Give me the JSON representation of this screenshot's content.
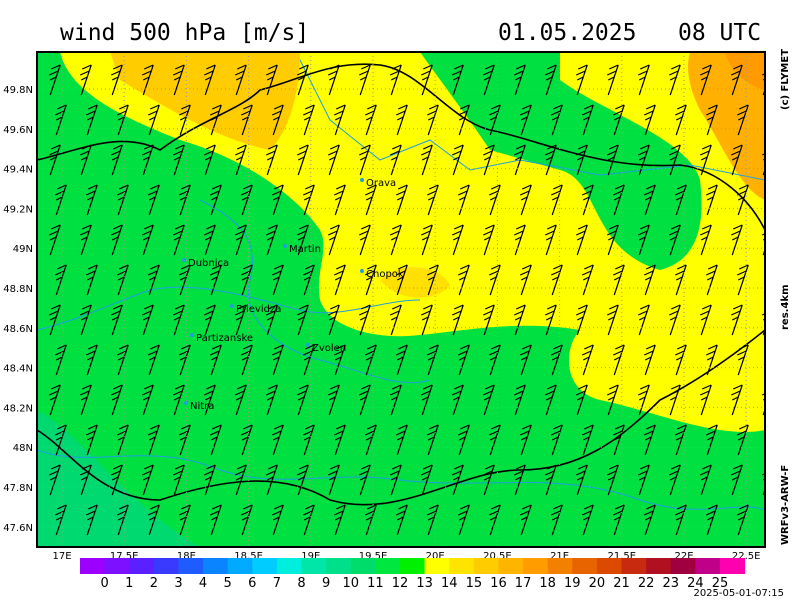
{
  "header": {
    "title": "wind 500 hPa [m/s]",
    "valid_time": "01.05.2025   08 UTC"
  },
  "side_labels": {
    "copyright": "(c) FLYMET",
    "resolution": "res.4km",
    "model": "WRFv3-ARW-F"
  },
  "lon_ticks": [
    "17E",
    "17.5E",
    "18E",
    "18.5E",
    "19E",
    "19.5E",
    "20E",
    "20.5E",
    "21E",
    "21.5E",
    "22E",
    "22.5E"
  ],
  "lat_ticks": [
    "49.8N",
    "49.6N",
    "49.4N",
    "49.2N",
    "49N",
    "48.8N",
    "48.6N",
    "48.4N",
    "48.2N",
    "48N",
    "47.8N",
    "47.6N"
  ],
  "places": [
    "Orava",
    "Martin",
    "Dubnica",
    "Chopok",
    "Prievidza",
    "Partizanske",
    "Zvolen",
    "Nitra"
  ],
  "colorbar": {
    "labels": [
      "0",
      "1",
      "2",
      "3",
      "4",
      "5",
      "6",
      "7",
      "8",
      "9",
      "10",
      "11",
      "12",
      "13",
      "14",
      "15",
      "16",
      "17",
      "18",
      "19",
      "20",
      "21",
      "22",
      "23",
      "24",
      "25"
    ],
    "colors": [
      "#9c00ff",
      "#7c10ff",
      "#5a20ff",
      "#3a3aff",
      "#1f5cff",
      "#0a84ff",
      "#00aaff",
      "#00ccff",
      "#00eedd",
      "#00e6a8",
      "#00e08a",
      "#00dc6a",
      "#00e840",
      "#00f000",
      "#ffff00",
      "#ffe400",
      "#ffcc00",
      "#ffb400",
      "#ff9c00",
      "#f48000",
      "#e86400",
      "#dc4a00",
      "#c82a10",
      "#b01020",
      "#a00040",
      "#c00088",
      "#ff00b0"
    ]
  },
  "footer": {
    "timestamp": "2025-05-01-07:15"
  }
}
